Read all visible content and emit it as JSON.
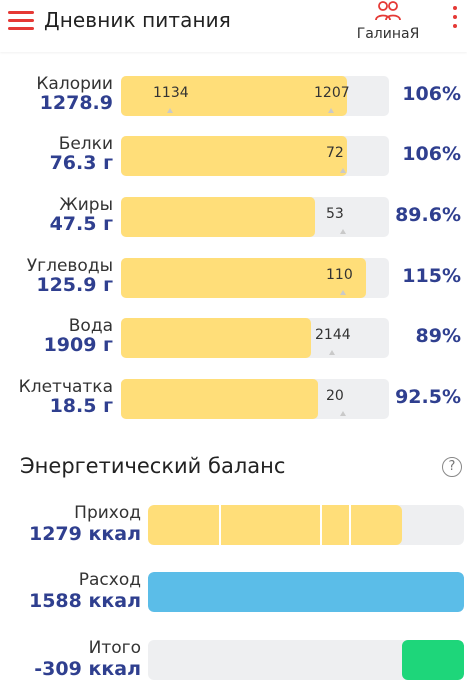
{
  "header": {
    "title": "Дневник питания",
    "profile_name": "ГалинаЯ",
    "icons": {
      "menu": "hamburger-icon",
      "profile": "people-icon",
      "more": "more-vert-icon"
    }
  },
  "nutrients": [
    {
      "label": "Калории",
      "value": "1278.9",
      "fill": 0.845,
      "marks": [
        {
          "text": "1134",
          "pos": 0.12
        },
        {
          "text": "1207",
          "pos": 0.72
        }
      ],
      "percent": "106%"
    },
    {
      "label": "Белки",
      "value": "76.3 г",
      "fill": 0.845,
      "marks": [
        {
          "text": "72",
          "pos": 0.765
        }
      ],
      "percent": "106%"
    },
    {
      "label": "Жиры",
      "value": "47.5 г",
      "fill": 0.725,
      "marks": [
        {
          "text": "53",
          "pos": 0.765
        }
      ],
      "percent": "89.6%"
    },
    {
      "label": "Углеводы",
      "value": "125.9 г",
      "fill": 0.915,
      "marks": [
        {
          "text": "110",
          "pos": 0.765
        }
      ],
      "percent": "115%"
    },
    {
      "label": "Вода",
      "value": "1909 г",
      "fill": 0.71,
      "marks": [
        {
          "text": "2144",
          "pos": 0.725
        }
      ],
      "percent": "89%"
    },
    {
      "label": "Клетчатка",
      "value": "18.5 г",
      "fill": 0.735,
      "marks": [
        {
          "text": "20",
          "pos": 0.765
        }
      ],
      "percent": "92.5%"
    }
  ],
  "energy": {
    "title": "Энергетический баланс",
    "help_icon": "help-circle-icon",
    "rows": [
      {
        "label": "Приход",
        "value": "1279 ккал",
        "fill": 0.805,
        "color": "#ffde79",
        "align": "left",
        "dividers": [
          0.225,
          0.545,
          0.635
        ]
      },
      {
        "label": "Расход",
        "value": "1588 ккал",
        "fill": 1.0,
        "color": "#5bbde8",
        "align": "left",
        "dividers": []
      },
      {
        "label": "Итого",
        "value": "-309 ккал",
        "fill": 0.195,
        "color": "#1ed67a",
        "align": "right",
        "dividers": []
      }
    ]
  },
  "colors": {
    "accent": "#e53935",
    "value_blue": "#2f3f8f",
    "fill_yellow": "#ffde79",
    "track_grey": "#eeeff1",
    "expense_blue": "#5bbde8",
    "total_green": "#1ed67a"
  }
}
